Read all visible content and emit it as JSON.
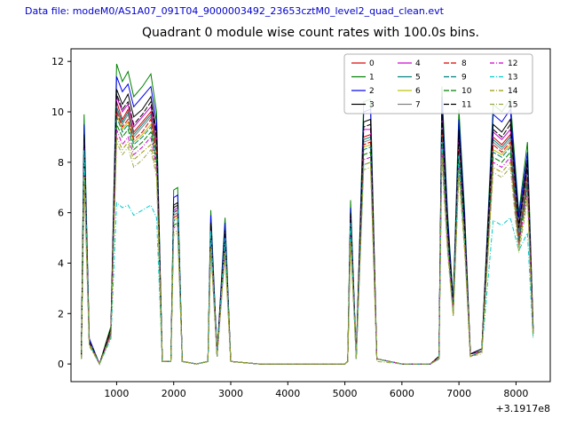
{
  "header": {
    "data_file_label": "Data file: modeM0/AS1A07_091T04_9000003492_23653cztM0_level2_quad_clean.evt",
    "text_color": "#0000cc"
  },
  "chart_data": {
    "type": "line",
    "title": "Quadrant 0 module wise count rates with 100.0s bins.",
    "xlabel": "",
    "ylabel": "",
    "x_offset_label": "+3.1917e8",
    "xlim": [
      200,
      8600
    ],
    "ylim": [
      -0.7,
      12.5
    ],
    "x_ticks": [
      1000,
      2000,
      3000,
      4000,
      5000,
      6000,
      7000,
      8000
    ],
    "y_ticks": [
      0,
      2,
      4,
      6,
      8,
      10,
      12
    ],
    "grid": false,
    "legend_position": "upper right",
    "x": [
      380,
      430,
      520,
      700,
      900,
      1000,
      1100,
      1200,
      1300,
      1450,
      1600,
      1700,
      1800,
      1950,
      2000,
      2070,
      2150,
      2400,
      2600,
      2650,
      2760,
      2900,
      3000,
      3500,
      4200,
      5000,
      5050,
      5100,
      5200,
      5330,
      5450,
      5560,
      6000,
      6500,
      6650,
      6700,
      6800,
      6900,
      7000,
      7100,
      7200,
      7400,
      7600,
      7750,
      7900,
      8050,
      8200,
      8300
    ],
    "series": [
      {
        "name": "0",
        "color": "#dd0000",
        "dash": "",
        "values": [
          0.3,
          8.6,
          0.9,
          0.0,
          1.3,
          10.4,
          9.7,
          10.1,
          9.2,
          9.6,
          10.0,
          8.7,
          0.1,
          0.1,
          6.0,
          6.1,
          0.1,
          0.0,
          0.1,
          5.3,
          0.3,
          5.0,
          0.1,
          0.0,
          0.0,
          0.0,
          0.1,
          5.7,
          0.3,
          9.0,
          9.1,
          0.2,
          0.0,
          0.0,
          0.3,
          9.6,
          5.2,
          2.2,
          8.8,
          5.2,
          0.3,
          0.5,
          9.0,
          8.7,
          9.1,
          5.2,
          7.7,
          1.3
        ]
      },
      {
        "name": "1",
        "color": "#008000",
        "dash": "",
        "values": [
          0.3,
          9.9,
          1.0,
          0.0,
          1.5,
          11.9,
          11.2,
          11.6,
          10.6,
          11.0,
          11.5,
          10.0,
          0.1,
          0.1,
          6.9,
          7.0,
          0.1,
          0.0,
          0.1,
          6.1,
          0.4,
          5.8,
          0.1,
          0.0,
          0.0,
          0.0,
          0.1,
          6.5,
          0.3,
          10.4,
          10.5,
          0.2,
          0.0,
          0.0,
          0.3,
          11.0,
          6.0,
          2.5,
          10.1,
          6.0,
          0.4,
          0.6,
          10.3,
          10.0,
          10.5,
          6.0,
          8.8,
          1.5
        ]
      },
      {
        "name": "2",
        "color": "#0000ee",
        "dash": "",
        "values": [
          0.3,
          9.5,
          1.0,
          0.0,
          1.4,
          11.4,
          10.8,
          11.1,
          10.2,
          10.6,
          11.0,
          9.6,
          0.1,
          0.1,
          6.6,
          6.7,
          0.1,
          0.0,
          0.1,
          5.9,
          0.4,
          5.6,
          0.1,
          0.0,
          0.0,
          0.0,
          0.1,
          6.2,
          0.3,
          10.0,
          10.1,
          0.2,
          0.0,
          0.0,
          0.3,
          10.6,
          5.8,
          2.4,
          9.7,
          5.8,
          0.4,
          0.6,
          9.9,
          9.6,
          10.1,
          5.8,
          8.4,
          1.4
        ]
      },
      {
        "name": "3",
        "color": "#000000",
        "dash": "",
        "values": [
          0.3,
          9.1,
          0.9,
          0.0,
          1.4,
          10.9,
          10.3,
          10.7,
          9.8,
          10.1,
          10.6,
          9.2,
          0.1,
          0.1,
          6.3,
          6.4,
          0.1,
          0.0,
          0.1,
          5.6,
          0.4,
          5.3,
          0.1,
          0.0,
          0.0,
          0.0,
          0.1,
          6.0,
          0.3,
          9.6,
          9.7,
          0.2,
          0.0,
          0.0,
          0.3,
          10.1,
          5.5,
          2.3,
          9.3,
          5.5,
          0.4,
          0.6,
          9.5,
          9.2,
          9.7,
          5.5,
          8.1,
          1.4
        ]
      },
      {
        "name": "4",
        "color": "#cc00cc",
        "dash": "",
        "values": [
          0.3,
          8.8,
          0.9,
          0.0,
          1.3,
          10.6,
          10.0,
          10.3,
          9.4,
          9.8,
          10.2,
          8.9,
          0.1,
          0.1,
          6.1,
          6.2,
          0.1,
          0.0,
          0.1,
          5.4,
          0.4,
          5.2,
          0.1,
          0.0,
          0.0,
          0.0,
          0.1,
          5.8,
          0.3,
          9.3,
          9.3,
          0.2,
          0.0,
          0.0,
          0.3,
          9.8,
          5.3,
          2.2,
          9.0,
          5.3,
          0.4,
          0.5,
          9.2,
          8.9,
          9.3,
          5.3,
          7.8,
          1.3
        ]
      },
      {
        "name": "5",
        "color": "#008080",
        "dash": "",
        "values": [
          0.3,
          8.5,
          0.9,
          0.0,
          1.3,
          10.2,
          9.6,
          10.0,
          9.1,
          9.5,
          9.9,
          8.6,
          0.1,
          0.1,
          5.9,
          6.0,
          0.1,
          0.0,
          0.1,
          5.2,
          0.3,
          5.0,
          0.1,
          0.0,
          0.0,
          0.0,
          0.1,
          5.6,
          0.3,
          8.9,
          9.0,
          0.2,
          0.0,
          0.0,
          0.3,
          9.5,
          5.2,
          2.2,
          8.7,
          5.2,
          0.3,
          0.5,
          8.9,
          8.6,
          9.0,
          5.2,
          7.6,
          1.3
        ]
      },
      {
        "name": "6",
        "color": "#bfbf00",
        "dash": "",
        "values": [
          0.2,
          8.2,
          0.8,
          0.0,
          1.2,
          9.9,
          9.3,
          9.6,
          8.8,
          9.1,
          9.5,
          8.3,
          0.1,
          0.1,
          5.7,
          5.8,
          0.1,
          0.0,
          0.1,
          5.1,
          0.3,
          4.8,
          0.1,
          0.0,
          0.0,
          0.0,
          0.1,
          5.4,
          0.2,
          8.6,
          8.7,
          0.2,
          0.0,
          0.0,
          0.2,
          9.1,
          5.0,
          2.1,
          8.4,
          5.0,
          0.3,
          0.5,
          8.5,
          8.3,
          8.7,
          5.0,
          7.3,
          1.2
        ]
      },
      {
        "name": "7",
        "color": "#808080",
        "dash": "",
        "values": [
          0.3,
          8.4,
          0.9,
          0.0,
          1.3,
          10.1,
          9.5,
          9.9,
          9.0,
          9.4,
          9.8,
          8.5,
          0.1,
          0.1,
          5.9,
          6.0,
          0.1,
          0.0,
          0.1,
          5.2,
          0.3,
          4.9,
          0.1,
          0.0,
          0.0,
          0.0,
          0.1,
          5.5,
          0.3,
          8.8,
          8.9,
          0.2,
          0.0,
          0.0,
          0.3,
          9.4,
          5.1,
          2.1,
          8.6,
          5.1,
          0.3,
          0.5,
          8.8,
          8.5,
          8.9,
          5.1,
          7.5,
          1.3
        ]
      },
      {
        "name": "8",
        "color": "#dd0000",
        "dash": "6,2",
        "values": [
          0.3,
          8.3,
          0.8,
          0.0,
          1.3,
          10.0,
          9.4,
          9.7,
          8.9,
          9.2,
          9.7,
          8.4,
          0.1,
          0.1,
          5.8,
          5.9,
          0.1,
          0.0,
          0.1,
          5.1,
          0.3,
          4.9,
          0.1,
          0.0,
          0.0,
          0.0,
          0.1,
          5.5,
          0.3,
          8.7,
          8.8,
          0.2,
          0.0,
          0.0,
          0.3,
          9.2,
          5.0,
          2.1,
          8.5,
          5.0,
          0.3,
          0.5,
          8.7,
          8.4,
          8.8,
          5.0,
          7.4,
          1.3
        ]
      },
      {
        "name": "9",
        "color": "#008080",
        "dash": "6,2",
        "values": [
          0.2,
          8.1,
          0.8,
          0.0,
          1.2,
          9.8,
          9.2,
          9.5,
          8.7,
          9.0,
          9.4,
          8.2,
          0.1,
          0.1,
          5.7,
          5.7,
          0.1,
          0.0,
          0.1,
          5.0,
          0.3,
          4.8,
          0.1,
          0.0,
          0.0,
          0.0,
          0.1,
          5.3,
          0.2,
          8.5,
          8.6,
          0.2,
          0.0,
          0.0,
          0.2,
          9.0,
          4.9,
          2.1,
          8.3,
          4.9,
          0.3,
          0.5,
          8.4,
          8.2,
          8.6,
          4.9,
          7.2,
          1.2
        ]
      },
      {
        "name": "10",
        "color": "#008000",
        "dash": "6,2",
        "values": [
          0.2,
          7.9,
          0.8,
          0.0,
          1.2,
          9.5,
          9.0,
          9.3,
          8.5,
          8.8,
          9.2,
          8.0,
          0.1,
          0.1,
          5.5,
          5.6,
          0.1,
          0.0,
          0.1,
          4.9,
          0.3,
          4.6,
          0.1,
          0.0,
          0.0,
          0.0,
          0.1,
          5.2,
          0.2,
          8.3,
          8.4,
          0.2,
          0.0,
          0.0,
          0.2,
          8.8,
          4.8,
          2.0,
          8.1,
          4.8,
          0.3,
          0.5,
          8.2,
          8.0,
          8.4,
          4.8,
          7.0,
          1.2
        ]
      },
      {
        "name": "11",
        "color": "#000000",
        "dash": "6,2",
        "values": [
          0.3,
          8.9,
          0.9,
          0.0,
          1.4,
          10.7,
          10.1,
          10.4,
          9.5,
          9.9,
          10.4,
          9.0,
          0.1,
          0.1,
          6.2,
          6.3,
          0.1,
          0.0,
          0.1,
          5.5,
          0.4,
          5.2,
          0.1,
          0.0,
          0.0,
          0.0,
          0.1,
          5.9,
          0.3,
          9.4,
          9.5,
          0.2,
          0.0,
          0.0,
          0.3,
          9.9,
          5.4,
          2.3,
          9.1,
          5.4,
          0.4,
          0.5,
          9.3,
          9.0,
          9.5,
          5.4,
          7.9,
          1.4
        ]
      },
      {
        "name": "12",
        "color": "#cc00cc",
        "dash": "5,2,1,2",
        "values": [
          0.2,
          7.7,
          0.8,
          0.0,
          1.2,
          9.3,
          8.7,
          9.0,
          8.3,
          8.6,
          9.0,
          7.8,
          0.1,
          0.1,
          5.4,
          5.5,
          0.1,
          0.0,
          0.1,
          4.8,
          0.3,
          4.5,
          0.1,
          0.0,
          0.0,
          0.0,
          0.1,
          5.1,
          0.2,
          8.1,
          8.2,
          0.2,
          0.0,
          0.0,
          0.2,
          8.6,
          4.7,
          2.0,
          7.9,
          4.7,
          0.3,
          0.5,
          8.0,
          7.8,
          8.2,
          4.7,
          6.9,
          1.2
        ]
      },
      {
        "name": "13",
        "color": "#00cccc",
        "dash": "5,2,1,2",
        "values": [
          0.2,
          8.5,
          0.8,
          0.0,
          1.0,
          6.4,
          6.2,
          6.3,
          5.9,
          6.1,
          6.3,
          5.8,
          0.1,
          0.1,
          6.0,
          6.2,
          0.1,
          0.0,
          0.1,
          5.3,
          0.3,
          5.0,
          0.1,
          0.0,
          0.0,
          0.0,
          0.1,
          5.6,
          0.2,
          7.9,
          8.0,
          0.2,
          0.0,
          0.0,
          0.2,
          8.8,
          4.8,
          2.0,
          8.3,
          4.8,
          0.3,
          0.5,
          5.7,
          5.5,
          5.8,
          4.5,
          5.2,
          1.0
        ]
      },
      {
        "name": "14",
        "color": "#999900",
        "dash": "5,2,1,2",
        "values": [
          0.2,
          7.5,
          0.8,
          0.0,
          1.1,
          9.0,
          8.5,
          8.8,
          8.1,
          8.4,
          8.7,
          7.6,
          0.1,
          0.1,
          5.2,
          5.3,
          0.1,
          0.0,
          0.1,
          4.6,
          0.3,
          4.4,
          0.1,
          0.0,
          0.0,
          0.0,
          0.1,
          4.9,
          0.2,
          7.9,
          8.0,
          0.2,
          0.0,
          0.0,
          0.2,
          8.4,
          4.6,
          1.9,
          7.7,
          4.6,
          0.3,
          0.5,
          7.8,
          7.6,
          8.0,
          4.6,
          6.7,
          1.1
        ]
      },
      {
        "name": "15",
        "color": "#9aa84a",
        "dash": "5,2,1,2",
        "values": [
          0.2,
          7.3,
          0.7,
          0.0,
          1.1,
          8.8,
          8.3,
          8.6,
          7.8,
          8.1,
          8.5,
          7.4,
          0.1,
          0.1,
          5.1,
          5.2,
          0.1,
          0.0,
          0.1,
          4.5,
          0.3,
          4.3,
          0.1,
          0.0,
          0.0,
          0.0,
          0.1,
          4.8,
          0.2,
          7.7,
          7.8,
          0.1,
          0.0,
          0.0,
          0.2,
          8.1,
          4.4,
          1.9,
          7.5,
          4.4,
          0.3,
          0.4,
          7.6,
          7.4,
          7.8,
          4.4,
          6.5,
          1.1
        ]
      }
    ]
  }
}
